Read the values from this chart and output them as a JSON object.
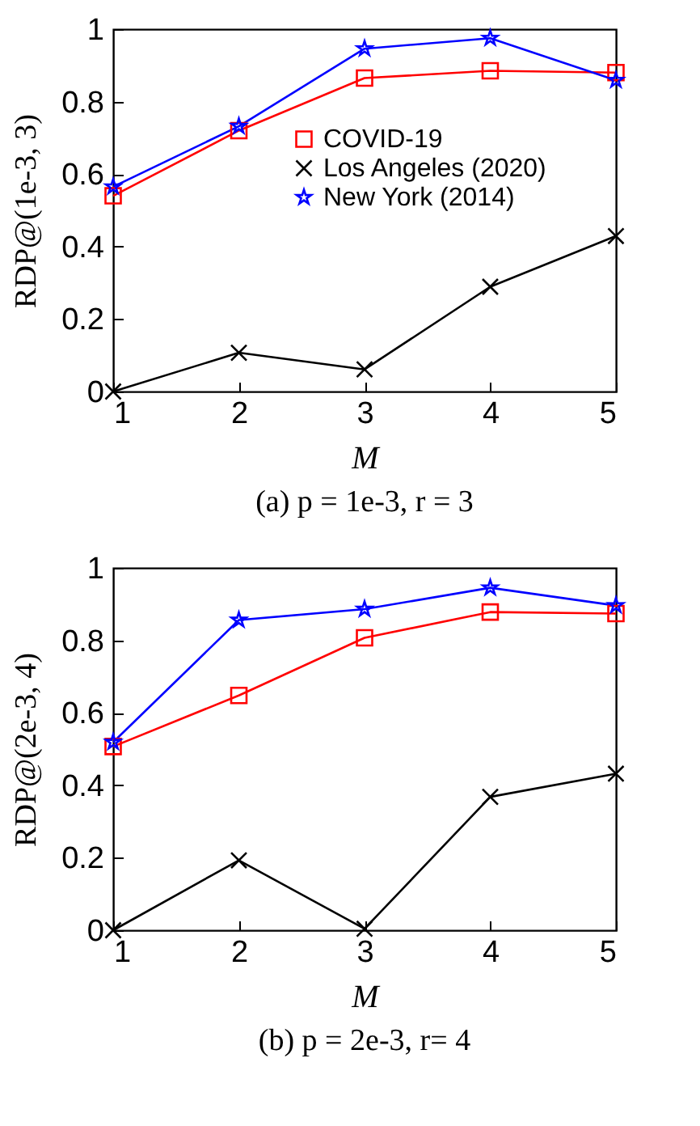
{
  "chart_data": [
    {
      "type": "line",
      "title": "(a) p = 1e-3, r = 3",
      "xlabel": "M",
      "ylabel": "RDP@(1e-3, 3)",
      "x": [
        1,
        2,
        3,
        4,
        5
      ],
      "xlim": [
        1,
        5
      ],
      "xticks": [
        1,
        2,
        3,
        4,
        5
      ],
      "ylim": [
        0,
        1
      ],
      "yticks": [
        0,
        0.2,
        0.4,
        0.6,
        0.8,
        1
      ],
      "legend": "right",
      "grid": false,
      "series": [
        {
          "name": "COVID-19",
          "color": "#ff0000",
          "marker": "square",
          "values": [
            0.54,
            0.72,
            0.865,
            0.885,
            0.88
          ]
        },
        {
          "name": "Los Angeles (2020)",
          "color": "#000000",
          "marker": "cross",
          "values": [
            0,
            0.107,
            0.061,
            0.289,
            0.429
          ]
        },
        {
          "name": "New York (2014)",
          "color": "#0000ff",
          "marker": "star",
          "values": [
            0.565,
            0.732,
            0.946,
            0.975,
            0.859
          ]
        }
      ]
    },
    {
      "type": "line",
      "title": "(b) p = 2e-3, r= 4",
      "xlabel": "M",
      "ylabel": "RDP@(2e-3, 4)",
      "x": [
        1,
        2,
        3,
        4,
        5
      ],
      "xlim": [
        1,
        5
      ],
      "xticks": [
        1,
        2,
        3,
        4,
        5
      ],
      "ylim": [
        0,
        1
      ],
      "yticks": [
        0,
        0.2,
        0.4,
        0.6,
        0.8,
        1
      ],
      "legend": "right",
      "grid": false,
      "series": [
        {
          "name": "COVID-19",
          "color": "#ff0000",
          "marker": "square",
          "values": [
            0.507,
            0.648,
            0.807,
            0.878,
            0.874
          ]
        },
        {
          "name": "Los Angeles (2020)",
          "color": "#000000",
          "marker": "cross",
          "values": [
            0,
            0.193,
            0.004,
            0.368,
            0.432
          ]
        },
        {
          "name": "New York (2014)",
          "color": "#0000ff",
          "marker": "star",
          "values": [
            0.519,
            0.856,
            0.886,
            0.945,
            0.896
          ]
        }
      ]
    }
  ]
}
